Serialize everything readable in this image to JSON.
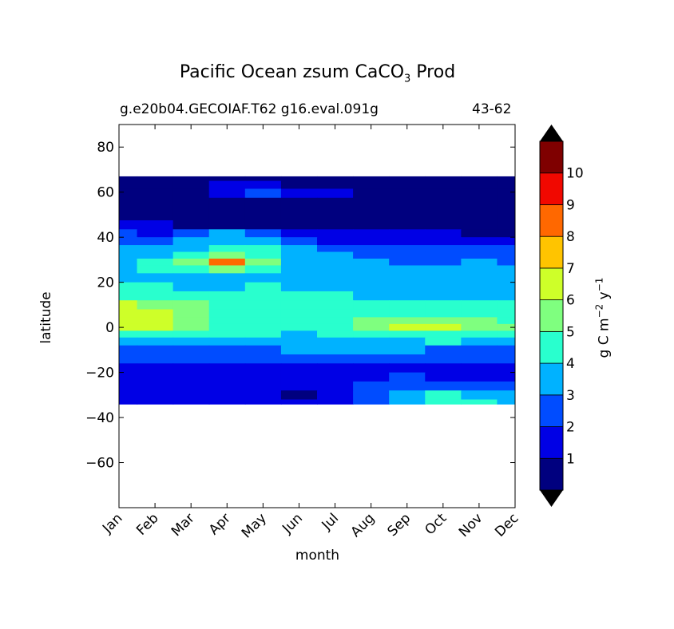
{
  "chart_data": {
    "type": "heatmap",
    "plot_kind": "filled contour",
    "title": "Pacific Ocean zsum CaCO",
    "title_subscript": "3",
    "title_suffix": " Prod",
    "subtitle_left": "g.e20b04.GECOIAF.T62 g16.eval.091g",
    "subtitle_right": "43-62",
    "xlabel": "month",
    "ylabel": "latitude",
    "x_ticklabels": [
      "Jan",
      "Feb",
      "Mar",
      "Apr",
      "May",
      "Jun",
      "Jul",
      "Aug",
      "Sep",
      "Oct",
      "Nov",
      "Dec"
    ],
    "x_range": [
      1,
      12
    ],
    "y_ticks": [
      80,
      60,
      40,
      20,
      0,
      -20,
      -40,
      -60
    ],
    "y_ticklabels": [
      "80",
      "60",
      "40",
      "20",
      "0",
      "−20",
      "−40",
      "−60"
    ],
    "y_range": [
      -80,
      90
    ],
    "data_lat_range": [
      -34,
      67
    ],
    "colorbar": {
      "label_main": "g C m",
      "label_exp1": "−2",
      "label_mid": " y",
      "label_exp2": "−1",
      "levels": [
        0,
        1,
        2,
        3,
        4,
        5,
        6,
        7,
        8,
        9,
        10,
        11
      ],
      "tick_labels": [
        "1",
        "2",
        "3",
        "4",
        "5",
        "6",
        "7",
        "8",
        "9",
        "10"
      ],
      "colors": [
        "#00007f",
        "#0000e5",
        "#004cff",
        "#00b2ff",
        "#29ffce",
        "#7fff7f",
        "#ceff29",
        "#ffc400",
        "#ff6800",
        "#f10800",
        "#7f0000"
      ],
      "under_color": "#000000",
      "over_color": "#000000"
    },
    "levels_grid": {
      "lat": [
        67,
        63,
        60,
        55,
        50,
        45,
        42,
        38,
        35,
        32,
        29,
        26,
        22,
        18,
        14,
        10,
        6,
        3,
        0,
        -3,
        -6,
        -10,
        -14,
        -18,
        -22,
        -26,
        -30,
        -34
      ],
      "values": [
        [
          0,
          0,
          0,
          0,
          0,
          0,
          0,
          0,
          0,
          0,
          0,
          0
        ],
        [
          0,
          0,
          0,
          1,
          1,
          0,
          0,
          0,
          0,
          0,
          0,
          0
        ],
        [
          0,
          0,
          0,
          1,
          2,
          1,
          1,
          0,
          0,
          0,
          0,
          0
        ],
        [
          0,
          0,
          0,
          0,
          0,
          0,
          0,
          0,
          0,
          0,
          0,
          0
        ],
        [
          0,
          0,
          0,
          0,
          0,
          0,
          0,
          0,
          0,
          0,
          0,
          0
        ],
        [
          1,
          1,
          0,
          0,
          0,
          0,
          0,
          0,
          0,
          0,
          0,
          0
        ],
        [
          2,
          1,
          2,
          3,
          2,
          1,
          1,
          1,
          1,
          1,
          0,
          0
        ],
        [
          2,
          2,
          3,
          3,
          3,
          2,
          1,
          1,
          1,
          1,
          1,
          1
        ],
        [
          3,
          3,
          3,
          4,
          4,
          3,
          2,
          2,
          2,
          2,
          2,
          2
        ],
        [
          3,
          3,
          4,
          5,
          4,
          3,
          3,
          2,
          2,
          2,
          2,
          2
        ],
        [
          3,
          4,
          5,
          8,
          5,
          3,
          3,
          3,
          2,
          2,
          3,
          2
        ],
        [
          3,
          4,
          4,
          5,
          4,
          3,
          3,
          3,
          3,
          3,
          3,
          3
        ],
        [
          3,
          3,
          3,
          3,
          3,
          3,
          3,
          3,
          3,
          3,
          3,
          3
        ],
        [
          4,
          4,
          3,
          3,
          4,
          3,
          3,
          3,
          3,
          3,
          3,
          3
        ],
        [
          4,
          4,
          4,
          4,
          4,
          4,
          4,
          3,
          3,
          3,
          3,
          3
        ],
        [
          6,
          5,
          5,
          4,
          4,
          4,
          4,
          4,
          4,
          4,
          4,
          4
        ],
        [
          6,
          6,
          5,
          4,
          4,
          4,
          4,
          4,
          4,
          4,
          4,
          4
        ],
        [
          6,
          6,
          5,
          4,
          4,
          4,
          4,
          5,
          5,
          5,
          5,
          4
        ],
        [
          6,
          6,
          5,
          4,
          4,
          4,
          4,
          5,
          6,
          6,
          5,
          5
        ],
        [
          4,
          4,
          4,
          4,
          4,
          3,
          4,
          4,
          4,
          4,
          4,
          4
        ],
        [
          3,
          3,
          3,
          3,
          3,
          3,
          3,
          3,
          3,
          4,
          3,
          3
        ],
        [
          2,
          2,
          2,
          2,
          2,
          3,
          3,
          3,
          3,
          2,
          2,
          2
        ],
        [
          2,
          2,
          2,
          2,
          2,
          2,
          2,
          2,
          2,
          2,
          2,
          2
        ],
        [
          1,
          1,
          1,
          1,
          1,
          1,
          1,
          1,
          1,
          1,
          1,
          1
        ],
        [
          1,
          1,
          1,
          1,
          1,
          1,
          1,
          1,
          2,
          1,
          1,
          1
        ],
        [
          1,
          1,
          1,
          1,
          1,
          1,
          1,
          2,
          2,
          2,
          2,
          2
        ],
        [
          1,
          1,
          1,
          1,
          1,
          0,
          1,
          2,
          3,
          4,
          3,
          3
        ],
        [
          1,
          1,
          1,
          1,
          1,
          1,
          1,
          2,
          3,
          4,
          4,
          3
        ]
      ]
    }
  }
}
